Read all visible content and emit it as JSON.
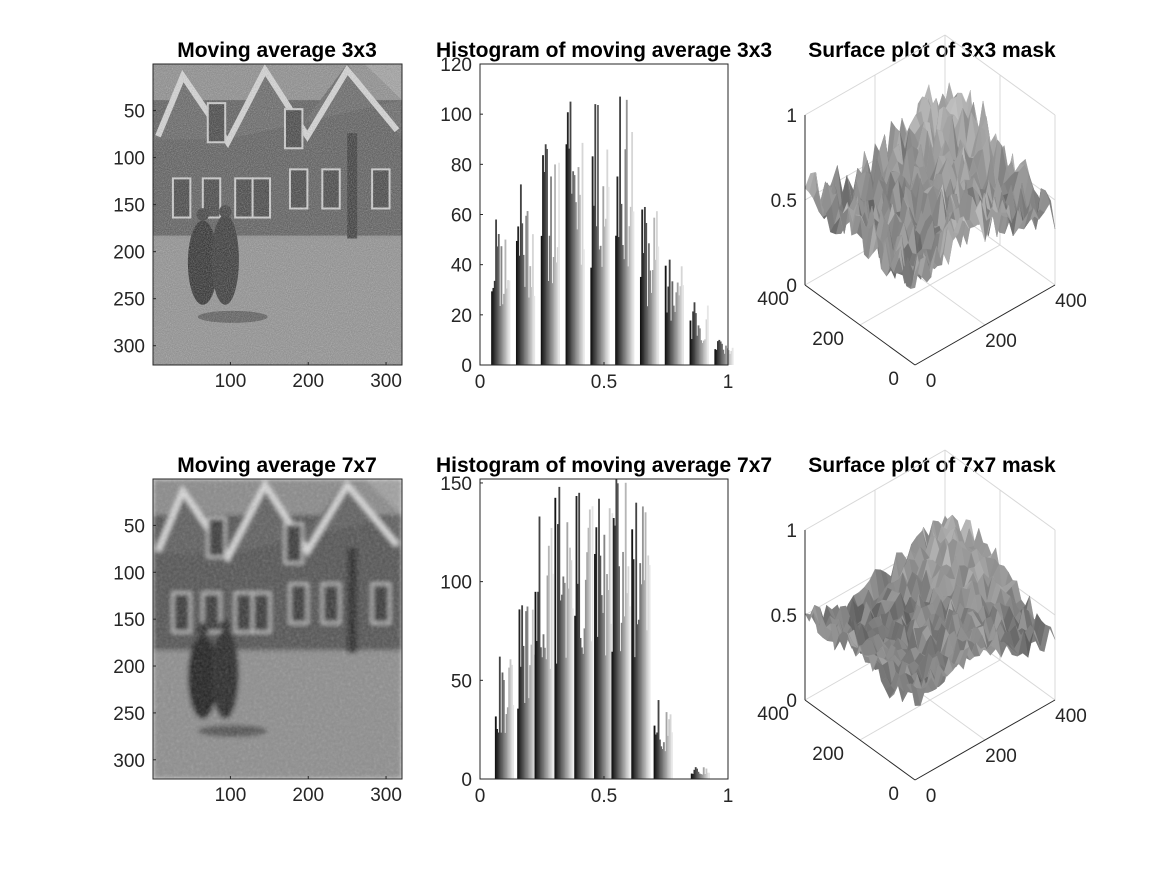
{
  "figure": {
    "background": "#ffffff",
    "colormap": "gray"
  },
  "chart_data": [
    {
      "type": "heatmap",
      "title": "Moving average 3x3",
      "image_size": [
        320,
        320
      ],
      "x_ticks": [
        "100",
        "200",
        "300"
      ],
      "y_ticks": [
        "50",
        "100",
        "150",
        "200",
        "250",
        "300"
      ],
      "y_direction": "reverse",
      "content": "grayscale filtered photo of a street with houses and two figures",
      "noise_level": "high"
    },
    {
      "type": "bar",
      "title": "Histogram of moving average 3x3",
      "xlim": [
        0,
        1
      ],
      "ylim": [
        0,
        120
      ],
      "x_ticks": [
        "0",
        "0.5",
        "1"
      ],
      "y_ticks": [
        "0",
        "20",
        "40",
        "60",
        "80",
        "100",
        "120"
      ],
      "clusters": [
        {
          "x": 0.045,
          "peak": 58
        },
        {
          "x": 0.145,
          "peak": 72
        },
        {
          "x": 0.245,
          "peak": 88
        },
        {
          "x": 0.345,
          "peak": 105
        },
        {
          "x": 0.445,
          "peak": 104
        },
        {
          "x": 0.545,
          "peak": 107
        },
        {
          "x": 0.645,
          "peak": 63
        },
        {
          "x": 0.745,
          "peak": 42
        },
        {
          "x": 0.845,
          "peak": 25
        },
        {
          "x": 0.945,
          "peak": 10
        }
      ]
    },
    {
      "type": "surface",
      "title": "Surface plot of 3x3 mask",
      "zlim": [
        0,
        1
      ],
      "z_ticks": [
        "0",
        "0.5",
        "1"
      ],
      "x_ticks": [
        "0",
        "200",
        "400"
      ],
      "y_ticks": [
        "0",
        "200",
        "400"
      ],
      "mean_level": 0.55,
      "roughness": "high"
    },
    {
      "type": "heatmap",
      "title": "Moving average 7x7",
      "image_size": [
        320,
        320
      ],
      "x_ticks": [
        "100",
        "200",
        "300"
      ],
      "y_ticks": [
        "50",
        "100",
        "150",
        "200",
        "250",
        "300"
      ],
      "y_direction": "reverse",
      "content": "grayscale filtered photo of a street with houses and two figures",
      "noise_level": "low"
    },
    {
      "type": "bar",
      "title": "Histogram of moving average 7x7",
      "xlim": [
        0,
        1
      ],
      "ylim": [
        0,
        152
      ],
      "x_ticks": [
        "0",
        "0.5",
        "1"
      ],
      "y_ticks": [
        "0",
        "50",
        "100",
        "150"
      ],
      "clusters": [
        {
          "x": 0.06,
          "peak": 62
        },
        {
          "x": 0.15,
          "peak": 88
        },
        {
          "x": 0.22,
          "peak": 133
        },
        {
          "x": 0.3,
          "peak": 148
        },
        {
          "x": 0.38,
          "peak": 145
        },
        {
          "x": 0.46,
          "peak": 142
        },
        {
          "x": 0.53,
          "peak": 152
        },
        {
          "x": 0.61,
          "peak": 140
        },
        {
          "x": 0.7,
          "peak": 40
        },
        {
          "x": 0.85,
          "peak": 6
        }
      ]
    },
    {
      "type": "surface",
      "title": "Surface plot of 7x7 mask",
      "zlim": [
        0,
        1
      ],
      "z_ticks": [
        "0",
        "0.5",
        "1"
      ],
      "x_ticks": [
        "0",
        "200",
        "400"
      ],
      "y_ticks": [
        "0",
        "200",
        "400"
      ],
      "mean_level": 0.5,
      "roughness": "medium"
    }
  ]
}
